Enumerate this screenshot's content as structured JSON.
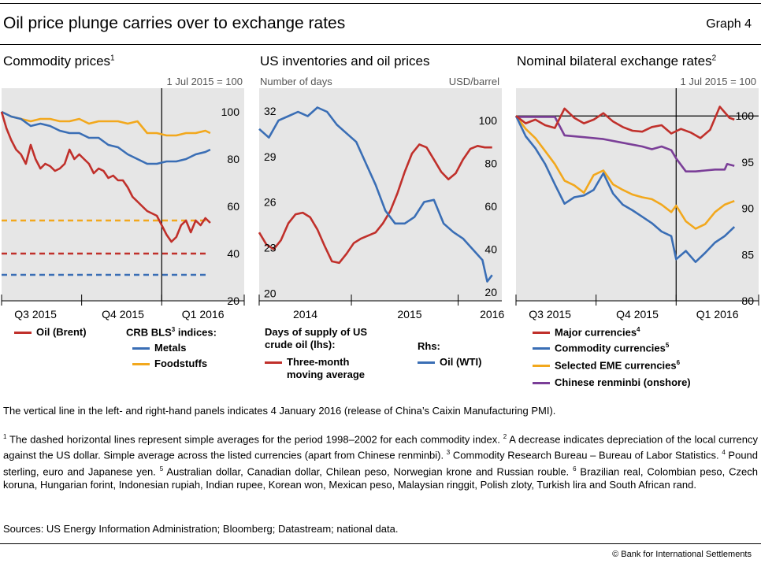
{
  "header": {
    "title": "Oil price plunge carries over to exchange rates",
    "graph_number": "Graph 4"
  },
  "colors": {
    "red": "#c0302b",
    "blue": "#3a6eb5",
    "orange": "#f2a81d",
    "purple": "#7b3f98",
    "plot_bg": "#e6e6e6"
  },
  "panels": [
    {
      "title": "Commodity prices",
      "title_sup": "1",
      "unit_left": "",
      "unit_right": "1 Jul 2015 = 100"
    },
    {
      "title": "US inventories and oil prices",
      "title_sup": "",
      "unit_left": "Number of days",
      "unit_right": "USD/barrel"
    },
    {
      "title": "Nominal bilateral exchange rates",
      "title_sup": "2",
      "unit_left": "",
      "unit_right": "1 Jul 2015 = 100"
    }
  ],
  "legends": {
    "p1": {
      "oil": "Oil (Brent)",
      "crb_prefix": "CRB BLS",
      "crb_sup": "3",
      "crb_suffix": " indices:",
      "metals": "Metals",
      "foodstuffs": "Foodstuffs"
    },
    "p2": {
      "days_line1": "Days of supply of US",
      "days_line2": "crude oil (lhs):",
      "tma_line1": "Three-month",
      "tma_line2": "moving average",
      "rhs": "Rhs:",
      "wti": "Oil (WTI)"
    },
    "p3": {
      "major": "Major currencies",
      "major_sup": "4",
      "commodity": "Commodity currencies",
      "commodity_sup": "5",
      "eme": "Selected EME currencies",
      "eme_sup": "6",
      "renminbi": "Chinese renminbi (onshore)"
    }
  },
  "note": "The vertical line in the left- and right-hand panels indicates 4 January 2016 (release of China’s Caixin Manufacturing PMI).",
  "footnotes": [
    {
      "n": "1",
      "text": " The dashed horizontal lines represent simple averages for the period 1998–2002 for each commodity index. "
    },
    {
      "n": "2",
      "text": " A decrease indicates depreciation of the local currency against the US dollar. Simple average across the listed currencies (apart from Chinese renminbi). "
    },
    {
      "n": "3",
      "text": " Commodity Research Bureau – Bureau of Labor Statistics. "
    },
    {
      "n": "4",
      "text": " Pound sterling, euro and Japanese yen. "
    },
    {
      "n": "5",
      "text": " Australian dollar, Canadian dollar, Chilean peso, Norwegian krone and Russian rouble. "
    },
    {
      "n": "6",
      "text": " Brazilian real, Colombian peso, Czech koruna, Hungarian forint, Indonesian rupiah, Indian rupee, Korean won, Mexican peso, Malaysian ringgit, Polish zloty, Turkish lira and South African rand."
    }
  ],
  "sources": "Sources: US Energy Information Administration; Bloomberg; Datastream; national data.",
  "copyright": "© Bank for International Settlements",
  "chart_data": [
    {
      "type": "line",
      "title": "Commodity prices",
      "x_labels": [
        "Q3 2015",
        "Q4 2015",
        "Q1 2016"
      ],
      "y_ticks": [
        "20",
        "40",
        "60",
        "80",
        "100"
      ],
      "ylim": [
        20,
        110
      ],
      "xlim": [
        0,
        1
      ],
      "x_tick_positions": [
        0.0,
        0.33,
        0.66,
        1.0
      ],
      "vline_x": 0.66,
      "grid": false,
      "series": [
        {
          "name": "Oil (Brent)",
          "color_key": "red",
          "x": [
            0.0,
            0.02,
            0.04,
            0.06,
            0.08,
            0.1,
            0.12,
            0.14,
            0.16,
            0.18,
            0.2,
            0.22,
            0.24,
            0.26,
            0.28,
            0.3,
            0.32,
            0.34,
            0.36,
            0.38,
            0.4,
            0.42,
            0.44,
            0.46,
            0.48,
            0.5,
            0.52,
            0.54,
            0.56,
            0.58,
            0.6,
            0.62,
            0.64,
            0.66,
            0.68,
            0.7,
            0.72,
            0.74,
            0.76,
            0.78,
            0.8,
            0.82,
            0.84,
            0.86
          ],
          "y": [
            100,
            93,
            88,
            84,
            82,
            78,
            86,
            80,
            76,
            78,
            77,
            75,
            76,
            78,
            84,
            80,
            82,
            80,
            78,
            74,
            76,
            75,
            72,
            73,
            71,
            71,
            68,
            64,
            62,
            60,
            58,
            57,
            56,
            52,
            48,
            45,
            47,
            52,
            54,
            49,
            54,
            52,
            55,
            53
          ]
        },
        {
          "name": "Metals",
          "color_key": "blue",
          "x": [
            0.0,
            0.04,
            0.08,
            0.12,
            0.16,
            0.2,
            0.24,
            0.28,
            0.32,
            0.36,
            0.4,
            0.44,
            0.48,
            0.52,
            0.56,
            0.6,
            0.64,
            0.68,
            0.72,
            0.76,
            0.8,
            0.84,
            0.86
          ],
          "y": [
            100,
            98,
            97,
            94,
            95,
            94,
            92,
            91,
            91,
            89,
            89,
            86,
            85,
            82,
            80,
            78,
            78,
            79,
            79,
            80,
            82,
            83,
            84
          ]
        },
        {
          "name": "Foodstuffs",
          "color_key": "orange",
          "x": [
            0.0,
            0.04,
            0.08,
            0.12,
            0.16,
            0.2,
            0.24,
            0.28,
            0.32,
            0.36,
            0.4,
            0.44,
            0.48,
            0.52,
            0.56,
            0.6,
            0.64,
            0.68,
            0.72,
            0.76,
            0.8,
            0.84,
            0.86
          ],
          "y": [
            100,
            98,
            97,
            96,
            97,
            97,
            96,
            96,
            97,
            95,
            96,
            96,
            96,
            95,
            96,
            91,
            91,
            90,
            90,
            91,
            91,
            92,
            91
          ]
        }
      ],
      "dashed_lines": [
        {
          "name": "Oil (Brent)",
          "color_key": "red",
          "y": 40
        },
        {
          "name": "Metals",
          "color_key": "blue",
          "y": 31
        },
        {
          "name": "Foodstuffs",
          "color_key": "orange",
          "y": 54
        }
      ]
    },
    {
      "type": "line",
      "title": "US inventories and oil prices",
      "x_labels": [
        "2014",
        "2015",
        "2016"
      ],
      "x_label_positions": [
        0.19,
        0.62,
        0.96
      ],
      "xlim": [
        0,
        1
      ],
      "x_tick_positions": [
        0.0,
        0.38,
        0.82
      ],
      "y_left_ticks": [
        "20",
        "23",
        "26",
        "29",
        "32"
      ],
      "y_left_lim": [
        19.5,
        33.5
      ],
      "y_right_ticks": [
        "20",
        "40",
        "60",
        "80",
        "100"
      ],
      "y_right_lim": [
        16,
        115
      ],
      "grid": false,
      "series": [
        {
          "name": "Three-month moving average",
          "axis": "left",
          "color_key": "red",
          "x": [
            0.0,
            0.03,
            0.06,
            0.09,
            0.12,
            0.15,
            0.18,
            0.21,
            0.24,
            0.27,
            0.3,
            0.33,
            0.36,
            0.39,
            0.42,
            0.45,
            0.48,
            0.51,
            0.54,
            0.57,
            0.6,
            0.63,
            0.66,
            0.69,
            0.72,
            0.75,
            0.78,
            0.81,
            0.84,
            0.87,
            0.9,
            0.93,
            0.96
          ],
          "y": [
            24.0,
            23.2,
            22.9,
            23.5,
            24.6,
            25.2,
            25.3,
            25.0,
            24.2,
            23.1,
            22.1,
            22.0,
            22.6,
            23.3,
            23.6,
            23.8,
            24.0,
            24.6,
            25.4,
            26.6,
            28.0,
            29.2,
            29.8,
            29.6,
            28.8,
            28.0,
            27.5,
            27.9,
            28.8,
            29.5,
            29.7,
            29.6,
            29.6
          ]
        },
        {
          "name": "Oil (WTI)",
          "axis": "right",
          "color_key": "blue",
          "x": [
            0.0,
            0.04,
            0.08,
            0.12,
            0.16,
            0.2,
            0.24,
            0.28,
            0.32,
            0.36,
            0.4,
            0.44,
            0.48,
            0.52,
            0.56,
            0.6,
            0.64,
            0.68,
            0.72,
            0.76,
            0.8,
            0.84,
            0.88,
            0.92,
            0.94,
            0.96
          ],
          "y": [
            96,
            92,
            100,
            102,
            104,
            102,
            106,
            104,
            98,
            94,
            90,
            80,
            70,
            58,
            52,
            52,
            55,
            62,
            63,
            52,
            48,
            45,
            40,
            35,
            25,
            28
          ]
        }
      ]
    },
    {
      "type": "line",
      "title": "Nominal bilateral exchange rates",
      "x_labels": [
        "Q3 2015",
        "Q4 2015",
        "Q1 2016"
      ],
      "y_ticks": [
        "80",
        "85",
        "90",
        "95",
        "100"
      ],
      "ylim": [
        80,
        103
      ],
      "xlim": [
        0,
        1
      ],
      "x_tick_positions": [
        0.0,
        0.33,
        0.66,
        1.0
      ],
      "vline_x": 0.66,
      "hline_y": 100,
      "grid": false,
      "series": [
        {
          "name": "Major currencies",
          "color_key": "red",
          "x": [
            0.0,
            0.04,
            0.08,
            0.12,
            0.16,
            0.2,
            0.24,
            0.28,
            0.32,
            0.36,
            0.4,
            0.44,
            0.48,
            0.52,
            0.56,
            0.6,
            0.64,
            0.68,
            0.72,
            0.76,
            0.8,
            0.84,
            0.88,
            0.9
          ],
          "y": [
            100,
            99.2,
            99.6,
            99.0,
            98.7,
            100.8,
            99.8,
            99.2,
            99.6,
            100.3,
            99.4,
            98.8,
            98.4,
            98.3,
            98.8,
            99.0,
            98.1,
            98.6,
            98.2,
            97.6,
            98.5,
            101.0,
            99.8,
            99.6
          ]
        },
        {
          "name": "Commodity currencies",
          "color_key": "blue",
          "x": [
            0.0,
            0.04,
            0.08,
            0.12,
            0.16,
            0.2,
            0.24,
            0.28,
            0.32,
            0.36,
            0.4,
            0.44,
            0.48,
            0.52,
            0.56,
            0.6,
            0.64,
            0.66,
            0.7,
            0.74,
            0.78,
            0.82,
            0.86,
            0.9
          ],
          "y": [
            100,
            97.8,
            96.5,
            94.8,
            92.6,
            90.5,
            91.2,
            91.4,
            92.0,
            93.8,
            91.6,
            90.4,
            89.8,
            89.1,
            88.4,
            87.5,
            87.0,
            84.5,
            85.4,
            84.2,
            85.2,
            86.3,
            87.0,
            88.0
          ]
        },
        {
          "name": "Selected EME currencies",
          "color_key": "orange",
          "x": [
            0.0,
            0.04,
            0.08,
            0.12,
            0.16,
            0.2,
            0.24,
            0.28,
            0.32,
            0.36,
            0.4,
            0.44,
            0.48,
            0.52,
            0.56,
            0.6,
            0.64,
            0.66,
            0.7,
            0.74,
            0.78,
            0.82,
            0.86,
            0.9
          ],
          "y": [
            100,
            98.6,
            97.6,
            96.2,
            94.8,
            93.0,
            92.5,
            91.7,
            93.6,
            94.1,
            92.6,
            92.0,
            91.5,
            91.2,
            91.0,
            90.4,
            89.6,
            90.3,
            88.6,
            87.8,
            88.3,
            89.6,
            90.4,
            90.8
          ]
        },
        {
          "name": "Chinese renminbi (onshore)",
          "color_key": "purple",
          "x": [
            0.0,
            0.08,
            0.16,
            0.2,
            0.28,
            0.36,
            0.44,
            0.52,
            0.56,
            0.6,
            0.64,
            0.66,
            0.7,
            0.74,
            0.78,
            0.82,
            0.86,
            0.87,
            0.9
          ],
          "y": [
            99.9,
            99.9,
            99.9,
            97.9,
            97.7,
            97.5,
            97.1,
            96.7,
            96.4,
            96.7,
            96.3,
            95.4,
            94.0,
            94.0,
            94.1,
            94.2,
            94.2,
            94.8,
            94.6
          ]
        }
      ]
    }
  ]
}
